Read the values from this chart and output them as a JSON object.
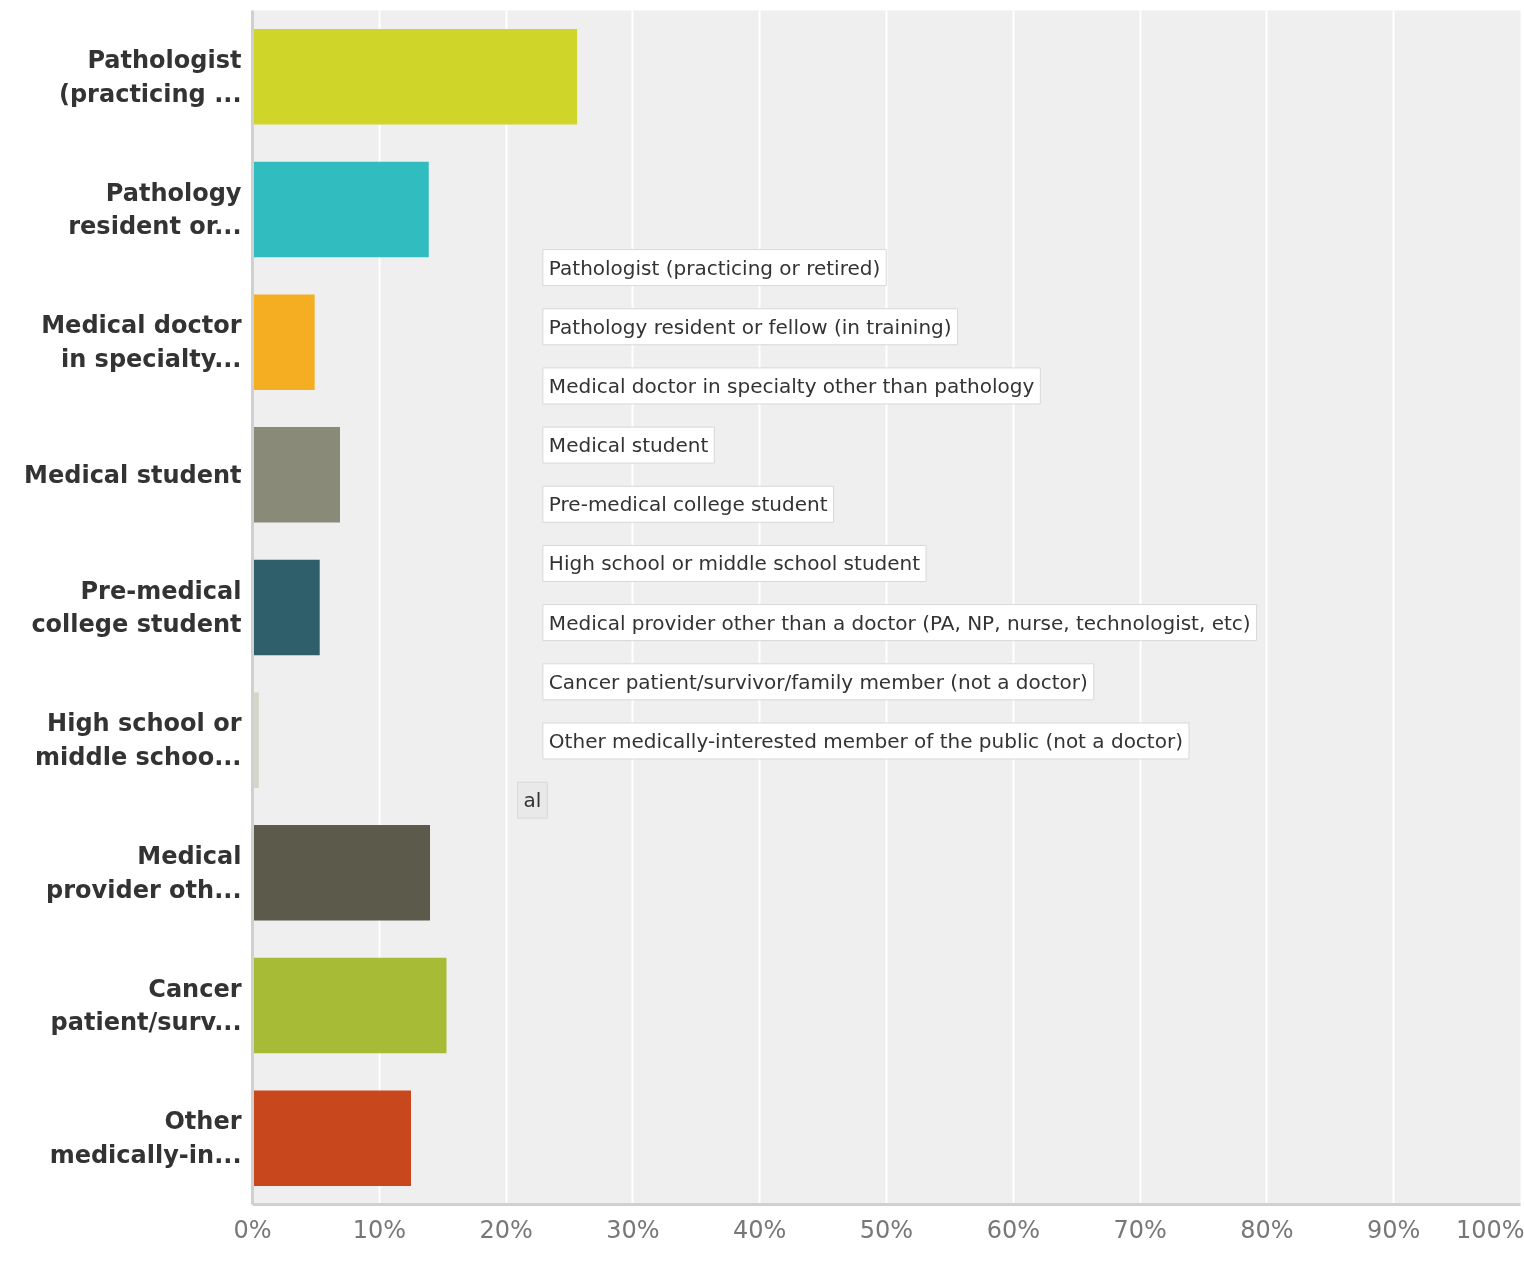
{
  "chart_data": {
    "type": "bar",
    "orientation": "horizontal",
    "categories": [
      "Pathologist (practicing ...",
      "Pathology resident or...",
      "Medical doctor in specialty...",
      "Medical student",
      "Pre-medical college student",
      "High school or middle schoo...",
      "Medical provider oth...",
      "Cancer patient/surv...",
      "Other medically-in..."
    ],
    "values": [
      25.6,
      13.9,
      4.9,
      6.9,
      5.3,
      0.5,
      14.0,
      15.3,
      12.5
    ],
    "colors": [
      "#cfd629",
      "#31bcbf",
      "#f5ae22",
      "#8a8a78",
      "#2e5f6b",
      "#d5d5c8",
      "#5c5a4a",
      "#a8bb36",
      "#c8471c"
    ],
    "xlim": [
      0,
      100
    ],
    "xticks": [
      {
        "value": 0,
        "label": "0%"
      },
      {
        "value": 10,
        "label": "10%"
      },
      {
        "value": 20,
        "label": "20%"
      },
      {
        "value": 30,
        "label": "30%"
      },
      {
        "value": 40,
        "label": "40%"
      },
      {
        "value": 50,
        "label": "50%"
      },
      {
        "value": 60,
        "label": "60%"
      },
      {
        "value": 70,
        "label": "70%"
      },
      {
        "value": 80,
        "label": "80%"
      },
      {
        "value": 90,
        "label": "90%"
      },
      {
        "value": 100,
        "label": "100%"
      }
    ],
    "grid": "x",
    "annotations": [
      "Pathologist (practicing or retired)",
      "Pathology resident or fellow (in training)",
      "Medical doctor in specialty other than pathology",
      "Medical student",
      "Pre-medical college student",
      "High school or middle school student",
      "Medical provider other than a doctor (PA, NP, nurse, technologist, etc)",
      "Cancer patient/survivor/family member (not a doctor)",
      "Other medically-interested member of the public (not a doctor)",
      "al"
    ]
  }
}
